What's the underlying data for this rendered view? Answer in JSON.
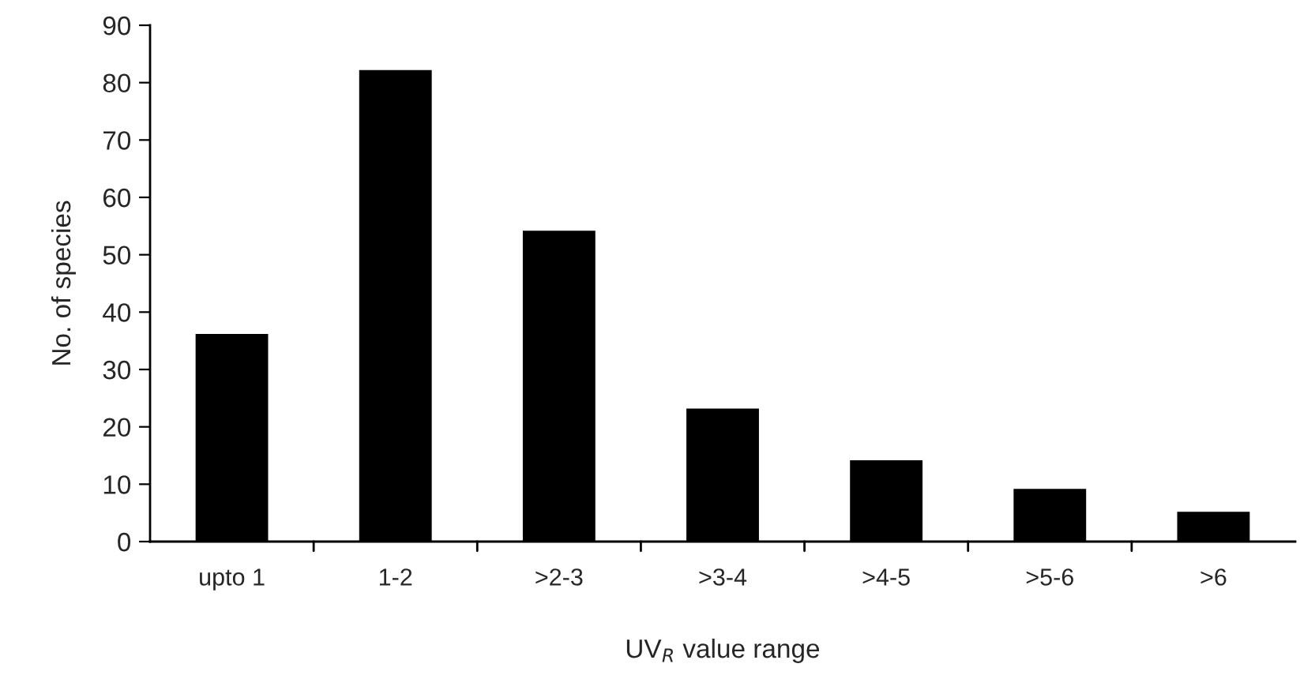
{
  "chart_data": {
    "type": "bar",
    "xlabel": "UV$_{R}$ value range",
    "ylabel": "No. of species",
    "categories": [
      "upto 1",
      "1-2",
      ">2-3",
      ">3-4",
      ">4-5",
      ">5-6",
      ">6"
    ],
    "values": [
      36,
      82,
      54,
      23,
      14,
      9,
      5
    ],
    "color": "#000000",
    "ylim": [
      0,
      90
    ],
    "yticks": [
      0,
      10,
      20,
      30,
      40,
      50,
      60,
      70,
      80,
      90
    ],
    "grid": false,
    "legend": false
  }
}
